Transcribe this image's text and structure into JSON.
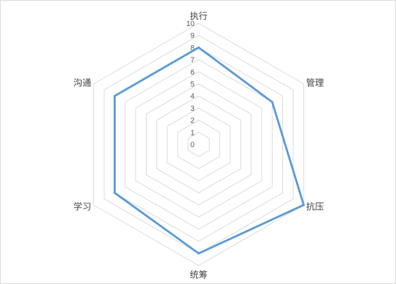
{
  "chart_data": {
    "type": "radar",
    "axes": [
      "执行",
      "管理",
      "抗压",
      "统筹",
      "学习",
      "沟通"
    ],
    "series": [
      {
        "values": [
          8,
          7,
          10,
          9,
          8,
          8
        ]
      }
    ],
    "rlim": [
      0,
      10
    ],
    "ticks": [
      "0",
      "1",
      "2",
      "3",
      "4",
      "5",
      "6",
      "7",
      "8",
      "9",
      "10"
    ],
    "grid": true,
    "legend": "none",
    "colors": {
      "series": "#5b9bd5",
      "grid": "#d9d9d9"
    }
  }
}
